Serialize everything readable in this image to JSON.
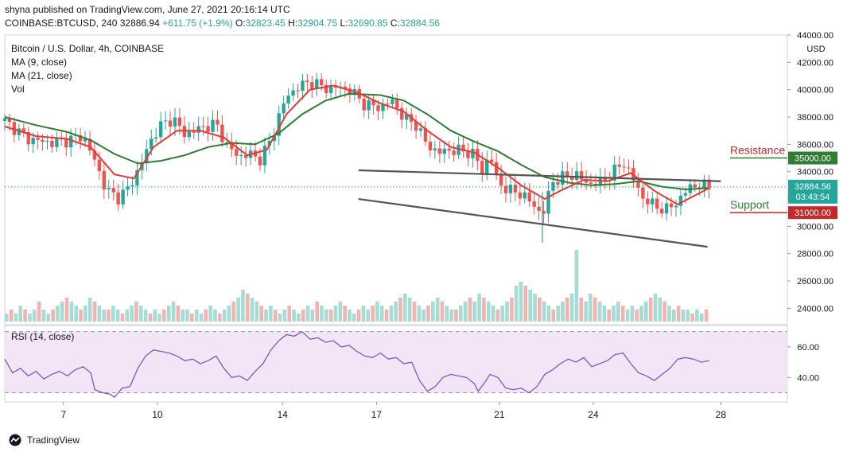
{
  "header": {
    "published": "shyna published on TradingView.com, June 27, 2021 20:16:14 UTC",
    "symbol": "COINBASE:BTCUSD, 240",
    "last": "32886.94",
    "change": "+611.75 (+1.9%)",
    "o_label": "O:",
    "o": "32823.45",
    "h_label": "H:",
    "h": "32904.75",
    "l_label": "L:",
    "l": "32690.85",
    "c_label": "C:",
    "c": "32884.56"
  },
  "legend": {
    "title": "Bitcoin / U.S. Dollar, 4h, COINBASE",
    "ma9": "MA (9, close)",
    "ma21": "MA (21, close)",
    "vol": "Vol",
    "rsi": "RSI (14, close)"
  },
  "footer": {
    "brand": "TradingView"
  },
  "colors": {
    "up": "#26a69a",
    "down": "#ef5350",
    "ma9": "#e53935",
    "ma21": "#2e7d32",
    "channel": "#555555",
    "rsi": "#7e57c2",
    "rsi_fill": "#f3e5f5",
    "resistance": "#c62828",
    "support": "#2e7d32"
  },
  "chart_data": {
    "type": "candlestick",
    "title": "Bitcoin / U.S. Dollar, 4h, COINBASE",
    "currency": "USD",
    "x_ticks": [
      "7",
      "10",
      "14",
      "17",
      "21",
      "24",
      "28"
    ],
    "y_ticks": [
      "44000.00",
      "42000.00",
      "40000.00",
      "38000.00",
      "36000.00",
      "34000.00",
      "32000.00",
      "30000.00",
      "28000.00",
      "26000.00",
      "24000.00"
    ],
    "ylim": [
      22800,
      44000
    ],
    "rsi_ticks": [
      "60.00",
      "40.00"
    ],
    "rsi_levels": [
      70,
      30
    ],
    "rsi_ylim": [
      24,
      74
    ],
    "last_price_label": "32884.56",
    "countdown_label": "03:43:54",
    "levels": [
      {
        "name": "Resistance",
        "price": 35000,
        "label": "35000.00"
      },
      {
        "name": "Support",
        "price": 31000,
        "label": "31000.00"
      }
    ],
    "channel": [
      {
        "x": [
          0.452,
          0.915
        ],
        "y": [
          34100,
          33300
        ]
      },
      {
        "x": [
          0.452,
          0.898
        ],
        "y": [
          32000,
          28500
        ]
      }
    ],
    "price_path": [
      [
        0.0,
        37700
      ],
      [
        0.03,
        36400
      ],
      [
        0.06,
        36100
      ],
      [
        0.08,
        36300
      ],
      [
        0.1,
        36600
      ],
      [
        0.115,
        34800
      ],
      [
        0.13,
        32600
      ],
      [
        0.145,
        32100
      ],
      [
        0.16,
        32900
      ],
      [
        0.175,
        34700
      ],
      [
        0.19,
        36700
      ],
      [
        0.2,
        37400
      ],
      [
        0.215,
        37900
      ],
      [
        0.23,
        36700
      ],
      [
        0.25,
        37200
      ],
      [
        0.27,
        37500
      ],
      [
        0.285,
        35800
      ],
      [
        0.3,
        35100
      ],
      [
        0.315,
        35300
      ],
      [
        0.325,
        34800
      ],
      [
        0.34,
        36300
      ],
      [
        0.35,
        38000
      ],
      [
        0.36,
        39500
      ],
      [
        0.375,
        40200
      ],
      [
        0.39,
        40600
      ],
      [
        0.41,
        40100
      ],
      [
        0.43,
        40200
      ],
      [
        0.445,
        39800
      ],
      [
        0.46,
        38900
      ],
      [
        0.48,
        38700
      ],
      [
        0.495,
        39200
      ],
      [
        0.51,
        37900
      ],
      [
        0.525,
        37500
      ],
      [
        0.54,
        35900
      ],
      [
        0.555,
        35400
      ],
      [
        0.57,
        35600
      ],
      [
        0.585,
        35500
      ],
      [
        0.6,
        35300
      ],
      [
        0.61,
        34000
      ],
      [
        0.62,
        35300
      ],
      [
        0.63,
        33200
      ],
      [
        0.645,
        32600
      ],
      [
        0.66,
        32400
      ],
      [
        0.675,
        31600
      ],
      [
        0.687,
        30800
      ],
      [
        0.7,
        33300
      ],
      [
        0.715,
        33600
      ],
      [
        0.73,
        33800
      ],
      [
        0.745,
        33100
      ],
      [
        0.76,
        33200
      ],
      [
        0.775,
        33800
      ],
      [
        0.79,
        34700
      ],
      [
        0.8,
        33800
      ],
      [
        0.815,
        32100
      ],
      [
        0.83,
        31500
      ],
      [
        0.845,
        31200
      ],
      [
        0.86,
        31800
      ],
      [
        0.875,
        32900
      ],
      [
        0.89,
        33000
      ],
      [
        0.9,
        32885
      ]
    ],
    "ma9_path": [
      [
        0.0,
        37300
      ],
      [
        0.04,
        36600
      ],
      [
        0.08,
        36400
      ],
      [
        0.11,
        35800
      ],
      [
        0.14,
        33800
      ],
      [
        0.165,
        33500
      ],
      [
        0.19,
        35800
      ],
      [
        0.22,
        37000
      ],
      [
        0.25,
        37000
      ],
      [
        0.28,
        36500
      ],
      [
        0.31,
        35200
      ],
      [
        0.335,
        35600
      ],
      [
        0.36,
        38200
      ],
      [
        0.39,
        40000
      ],
      [
        0.42,
        40300
      ],
      [
        0.45,
        39800
      ],
      [
        0.48,
        39000
      ],
      [
        0.51,
        38400
      ],
      [
        0.54,
        37000
      ],
      [
        0.57,
        35800
      ],
      [
        0.6,
        35400
      ],
      [
        0.63,
        34300
      ],
      [
        0.66,
        33000
      ],
      [
        0.69,
        32000
      ],
      [
        0.71,
        32600
      ],
      [
        0.74,
        33400
      ],
      [
        0.77,
        33300
      ],
      [
        0.8,
        33900
      ],
      [
        0.83,
        32600
      ],
      [
        0.86,
        31600
      ],
      [
        0.88,
        32200
      ],
      [
        0.9,
        32800
      ]
    ],
    "ma21_path": [
      [
        0.0,
        38000
      ],
      [
        0.04,
        37400
      ],
      [
        0.08,
        36900
      ],
      [
        0.11,
        36300
      ],
      [
        0.14,
        35300
      ],
      [
        0.17,
        34600
      ],
      [
        0.2,
        34800
      ],
      [
        0.23,
        35200
      ],
      [
        0.26,
        35800
      ],
      [
        0.29,
        36100
      ],
      [
        0.32,
        36000
      ],
      [
        0.35,
        36800
      ],
      [
        0.38,
        38200
      ],
      [
        0.41,
        39200
      ],
      [
        0.44,
        39700
      ],
      [
        0.48,
        39600
      ],
      [
        0.51,
        39200
      ],
      [
        0.54,
        38200
      ],
      [
        0.57,
        37000
      ],
      [
        0.6,
        36200
      ],
      [
        0.63,
        35500
      ],
      [
        0.66,
        34500
      ],
      [
        0.69,
        33600
      ],
      [
        0.72,
        33200
      ],
      [
        0.75,
        33000
      ],
      [
        0.78,
        33100
      ],
      [
        0.81,
        33300
      ],
      [
        0.84,
        32900
      ],
      [
        0.87,
        32700
      ],
      [
        0.9,
        32800
      ]
    ],
    "volume": [
      2,
      3,
      2,
      4,
      3,
      2,
      3,
      5,
      3,
      2,
      3,
      4,
      5,
      6,
      5,
      4,
      3,
      4,
      6,
      5,
      4,
      3,
      3,
      4,
      3,
      2,
      3,
      4,
      5,
      4,
      3,
      2,
      3,
      2,
      3,
      4,
      5,
      4,
      3,
      3,
      2,
      3,
      2,
      3,
      4,
      3,
      2,
      3,
      4,
      5,
      6,
      8,
      7,
      6,
      5,
      4,
      3,
      4,
      3,
      2,
      3,
      4,
      3,
      2,
      3,
      4,
      3,
      5,
      4,
      3,
      3,
      4,
      5,
      4,
      3,
      2,
      3,
      4,
      3,
      4,
      5,
      4,
      3,
      4,
      5,
      6,
      7,
      6,
      5,
      4,
      3,
      4,
      5,
      6,
      5,
      4,
      3,
      3,
      4,
      5,
      6,
      5,
      7,
      6,
      5,
      4,
      3,
      4,
      5,
      6,
      9,
      10,
      9,
      8,
      7,
      6,
      5,
      4,
      3,
      4,
      5,
      6,
      7,
      18,
      6,
      5,
      7,
      6,
      5,
      4,
      3,
      4,
      5,
      4,
      3,
      4,
      3,
      4,
      5,
      6,
      7,
      6,
      5,
      4,
      3,
      4,
      3,
      3,
      2,
      3,
      2,
      3
    ],
    "rsi": [
      [
        0.0,
        52
      ],
      [
        0.01,
        43
      ],
      [
        0.02,
        46
      ],
      [
        0.03,
        41
      ],
      [
        0.04,
        44
      ],
      [
        0.05,
        39
      ],
      [
        0.06,
        42
      ],
      [
        0.07,
        44
      ],
      [
        0.08,
        41
      ],
      [
        0.09,
        45
      ],
      [
        0.1,
        47
      ],
      [
        0.11,
        43
      ],
      [
        0.115,
        32
      ],
      [
        0.125,
        30
      ],
      [
        0.135,
        29
      ],
      [
        0.14,
        27
      ],
      [
        0.15,
        33
      ],
      [
        0.16,
        34
      ],
      [
        0.17,
        46
      ],
      [
        0.18,
        54
      ],
      [
        0.19,
        58
      ],
      [
        0.2,
        57
      ],
      [
        0.21,
        56
      ],
      [
        0.22,
        54
      ],
      [
        0.23,
        51
      ],
      [
        0.24,
        52
      ],
      [
        0.25,
        49
      ],
      [
        0.26,
        51
      ],
      [
        0.27,
        54
      ],
      [
        0.28,
        46
      ],
      [
        0.29,
        40
      ],
      [
        0.3,
        41
      ],
      [
        0.31,
        38
      ],
      [
        0.32,
        44
      ],
      [
        0.33,
        49
      ],
      [
        0.34,
        58
      ],
      [
        0.35,
        64
      ],
      [
        0.36,
        68
      ],
      [
        0.37,
        67
      ],
      [
        0.38,
        70
      ],
      [
        0.39,
        65
      ],
      [
        0.4,
        66
      ],
      [
        0.41,
        63
      ],
      [
        0.42,
        64
      ],
      [
        0.43,
        60
      ],
      [
        0.44,
        61
      ],
      [
        0.45,
        57
      ],
      [
        0.46,
        54
      ],
      [
        0.47,
        53
      ],
      [
        0.48,
        56
      ],
      [
        0.49,
        52
      ],
      [
        0.5,
        53
      ],
      [
        0.51,
        49
      ],
      [
        0.52,
        50
      ],
      [
        0.53,
        38
      ],
      [
        0.54,
        31
      ],
      [
        0.55,
        34
      ],
      [
        0.56,
        40
      ],
      [
        0.57,
        42
      ],
      [
        0.58,
        41
      ],
      [
        0.59,
        40
      ],
      [
        0.6,
        36
      ],
      [
        0.605,
        31
      ],
      [
        0.615,
        38
      ],
      [
        0.62,
        42
      ],
      [
        0.63,
        40
      ],
      [
        0.64,
        33
      ],
      [
        0.65,
        32
      ],
      [
        0.66,
        33
      ],
      [
        0.67,
        30
      ],
      [
        0.68,
        34
      ],
      [
        0.69,
        42
      ],
      [
        0.7,
        45
      ],
      [
        0.71,
        49
      ],
      [
        0.72,
        52
      ],
      [
        0.73,
        50
      ],
      [
        0.74,
        53
      ],
      [
        0.75,
        47
      ],
      [
        0.76,
        49
      ],
      [
        0.77,
        51
      ],
      [
        0.78,
        55
      ],
      [
        0.79,
        56
      ],
      [
        0.8,
        49
      ],
      [
        0.81,
        43
      ],
      [
        0.82,
        41
      ],
      [
        0.83,
        38
      ],
      [
        0.84,
        42
      ],
      [
        0.85,
        46
      ],
      [
        0.86,
        52
      ],
      [
        0.87,
        53
      ],
      [
        0.88,
        52
      ],
      [
        0.89,
        50
      ],
      [
        0.9,
        51
      ]
    ]
  }
}
